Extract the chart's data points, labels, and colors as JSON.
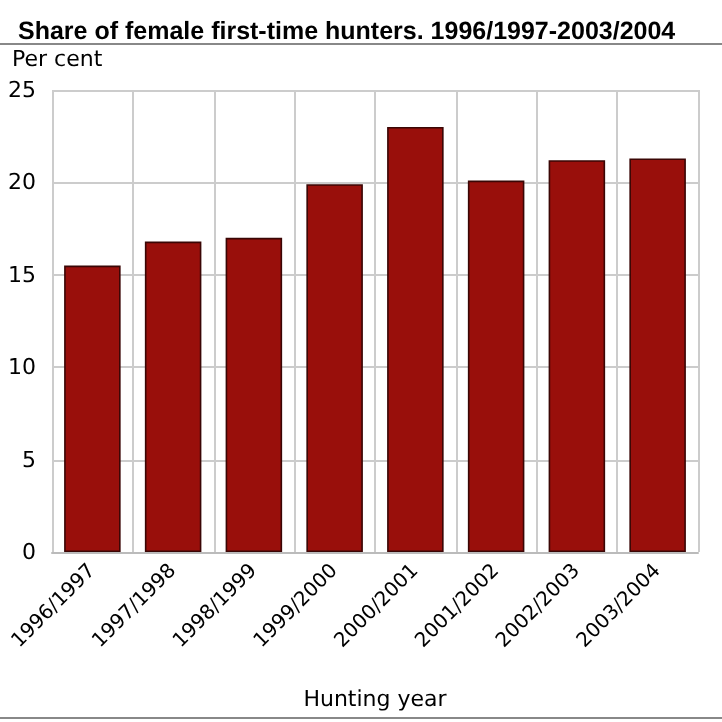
{
  "chart_data": {
    "type": "bar",
    "title": "Share of female first-time hunters. 1996/1997-2003/2004",
    "ylabel": "Per cent",
    "xlabel": "Hunting year",
    "categories": [
      "1996/1997",
      "1997/1998",
      "1998/1999",
      "1999/2000",
      "2000/2001",
      "2001/2002",
      "2002/2003",
      "2003/2004"
    ],
    "values": [
      15.5,
      16.8,
      17.0,
      19.9,
      23.0,
      20.1,
      21.2,
      21.3
    ],
    "color": "#990f0b",
    "ylim": [
      0,
      25
    ],
    "yticks": [
      0,
      5,
      10,
      15,
      20,
      25
    ],
    "grid": true
  }
}
